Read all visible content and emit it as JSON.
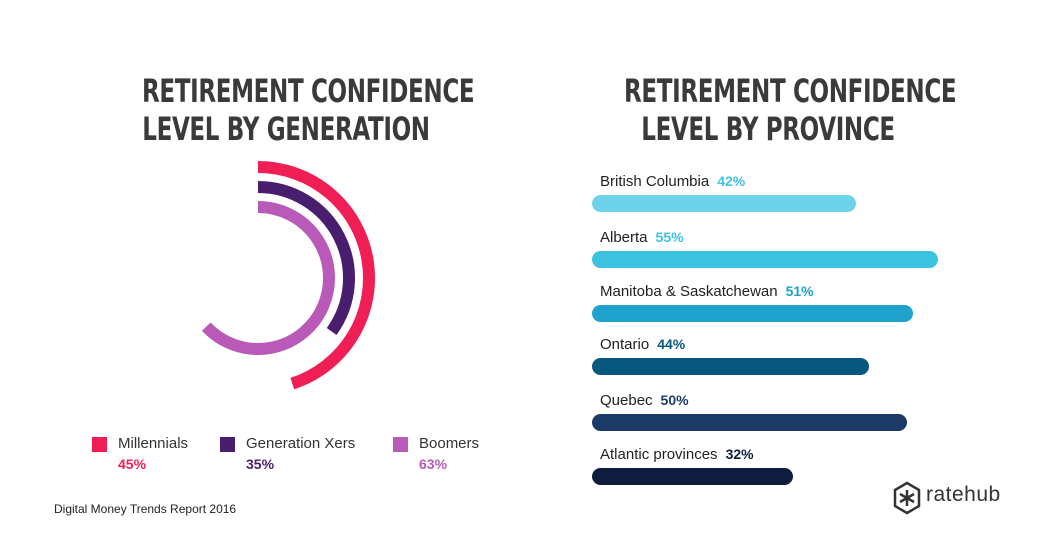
{
  "left_chart": {
    "title_line1": "RETIREMENT CONFIDENCE",
    "title_line2": "LEVEL BY GENERATION"
  },
  "right_chart": {
    "title_line1": "RETIREMENT CONFIDENCE",
    "title_line2": "LEVEL BY PROVINCE"
  },
  "chart_data": [
    {
      "type": "radial-bar",
      "title": "RETIREMENT CONFIDENCE LEVEL BY GENERATION",
      "series": [
        {
          "name": "Millennials",
          "value": 45,
          "label": "45%",
          "color": "#ef1f55"
        },
        {
          "name": "Generation Xers",
          "value": 35,
          "label": "35%",
          "color": "#4a1e6e"
        },
        {
          "name": "Boomers",
          "value": 63,
          "label": "63%",
          "color": "#b95ab9"
        }
      ]
    },
    {
      "type": "bar",
      "orientation": "horizontal",
      "title": "RETIREMENT CONFIDENCE LEVEL BY PROVINCE",
      "categories": [
        "British Columbia",
        "Alberta",
        "Manitoba & Saskatchewan",
        "Ontario",
        "Quebec",
        "Atlantic provinces"
      ],
      "values": [
        42,
        55,
        51,
        44,
        50,
        32
      ],
      "labels": [
        "42%",
        "55%",
        "51%",
        "44%",
        "50%",
        "32%"
      ],
      "bar_colors": [
        "#6dd3ea",
        "#3ec2e2",
        "#1fa2cc",
        "#07577f",
        "#1c3a66",
        "#0e1d3d"
      ],
      "label_colors": [
        "#3ec2e2",
        "#3ec2e2",
        "#1fa2cc",
        "#07577f",
        "#1c3a66",
        "#0e1d3d"
      ]
    }
  ],
  "footer": {
    "source": "Digital Money Trends Report 2016",
    "brand": "ratehub",
    "brand_icon": "ratehub-logo-icon"
  }
}
